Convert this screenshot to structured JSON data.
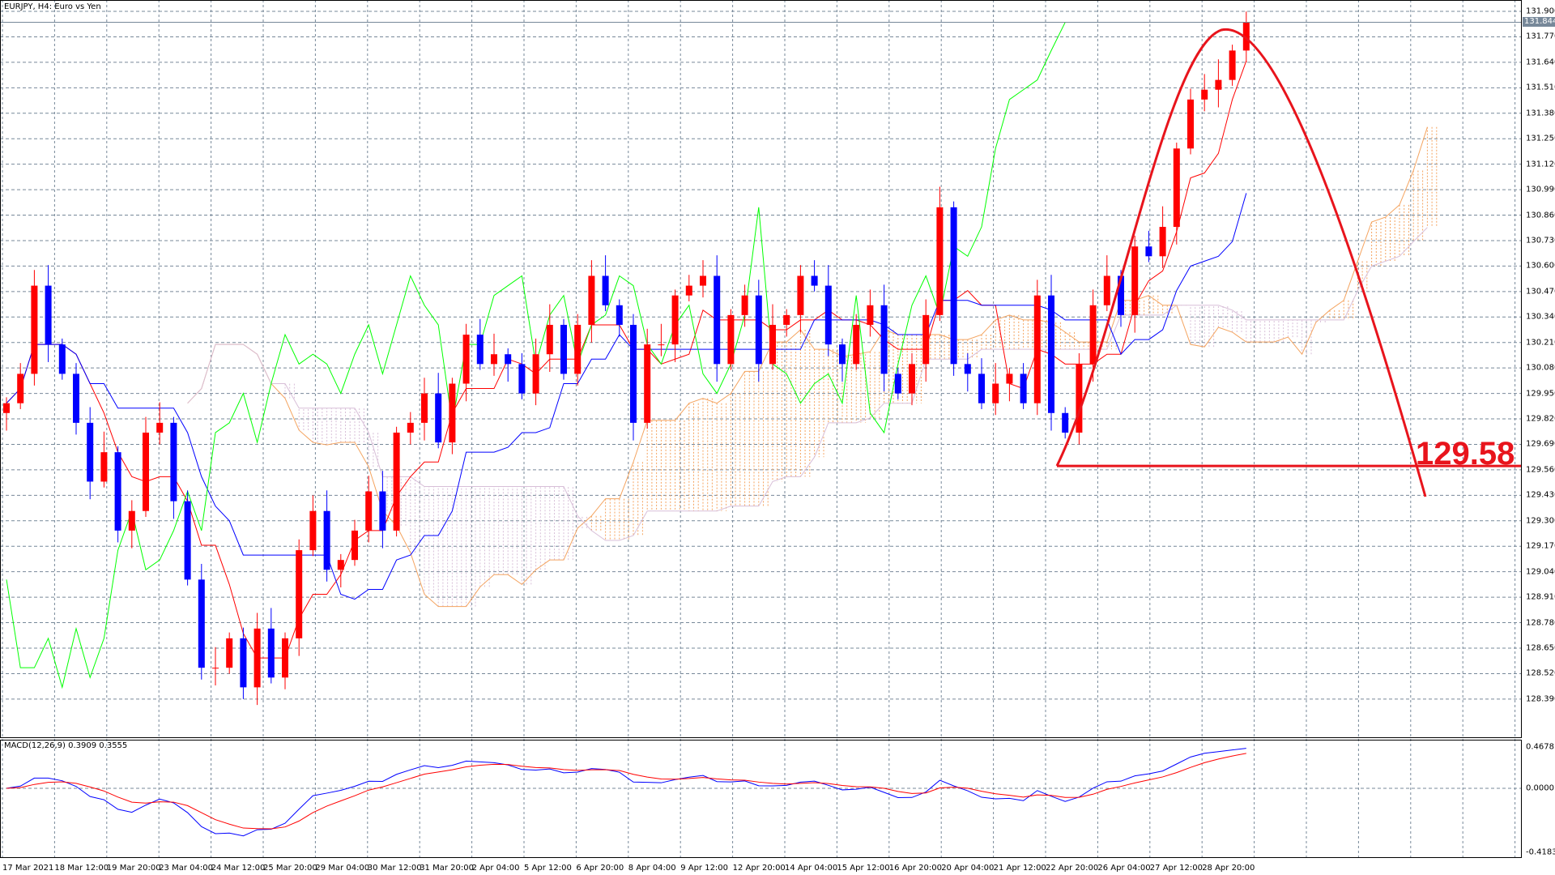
{
  "header": {
    "title": "EURJPY, H4: Euro vs Yen"
  },
  "macd": {
    "title": "MACD(12,26,9) 0.3909 0.3555",
    "axis": [
      "0.4678",
      "0.0000",
      "-0.4183"
    ]
  },
  "annotation": {
    "label": "129.58",
    "price": 129.58,
    "color": "#e8141c"
  },
  "current_price": {
    "label": "131.844",
    "value": 131.844
  },
  "colors": {
    "bull": "#ff0000",
    "bear": "#0000ff",
    "tenkan": "#ff0000",
    "kijun": "#0000ff",
    "chikou": "#00ff00",
    "cloud_up": "#f4a460",
    "cloud_down": "#d8bfd8",
    "grid": "#778899",
    "macd": "#0000ff",
    "signal": "#ff0000"
  },
  "chart_data": {
    "type": "candlestick",
    "ylim": [
      128.29,
      131.93
    ],
    "y_ticks": [
      "131.900",
      "131.770",
      "131.640",
      "131.510",
      "131.380",
      "131.250",
      "131.120",
      "130.990",
      "130.860",
      "130.730",
      "130.600",
      "130.470",
      "130.340",
      "130.210",
      "130.080",
      "129.950",
      "129.820",
      "129.690",
      "129.560",
      "129.430",
      "129.300",
      "129.170",
      "129.040",
      "128.910",
      "128.780",
      "128.650",
      "128.520",
      "128.390"
    ],
    "x_ticks": [
      "17 Mar 2021",
      "18 Mar 12:00",
      "19 Mar 20:00",
      "23 Mar 04:00",
      "24 Mar 12:00",
      "25 Mar 20:00",
      "29 Mar 04:00",
      "30 Mar 12:00",
      "31 Mar 20:00",
      "2 Apr 04:00",
      "5 Apr 12:00",
      "6 Apr 20:00",
      "8 Apr 04:00",
      "9 Apr 12:00",
      "12 Apr 20:00",
      "14 Apr 04:00",
      "15 Apr 12:00",
      "16 Apr 20:00",
      "20 Apr 04:00",
      "21 Apr 12:00",
      "22 Apr 20:00",
      "26 Apr 04:00",
      "27 Apr 12:00",
      "28 Apr 20:00"
    ],
    "close": [
      129.9,
      130.05,
      130.5,
      130.2,
      130.05,
      129.8,
      129.5,
      129.65,
      129.25,
      129.35,
      129.75,
      129.8,
      129.4,
      129.0,
      128.55,
      128.55,
      128.7,
      128.45,
      128.75,
      128.5,
      128.7,
      129.15,
      129.35,
      129.05,
      129.1,
      129.25,
      129.45,
      129.25,
      129.75,
      129.8,
      129.95,
      129.7,
      130.0,
      130.25,
      130.1,
      130.15,
      130.1,
      129.95,
      130.15,
      130.3,
      130.05,
      130.3,
      130.55,
      130.4,
      130.3,
      129.8,
      130.2,
      130.2,
      130.45,
      130.5,
      130.55,
      130.1,
      130.35,
      130.45,
      130.1,
      130.3,
      130.35,
      130.55,
      130.5,
      130.2,
      130.1,
      130.3,
      130.4,
      130.05,
      129.95,
      130.1,
      130.35,
      130.9,
      130.1,
      130.05,
      129.9,
      130.0,
      130.05,
      129.9,
      130.45,
      129.85,
      129.75,
      130.1,
      130.4,
      130.55,
      130.35,
      130.7,
      130.65,
      130.8,
      131.2,
      131.45,
      131.5,
      131.55,
      131.7,
      131.844
    ]
  }
}
